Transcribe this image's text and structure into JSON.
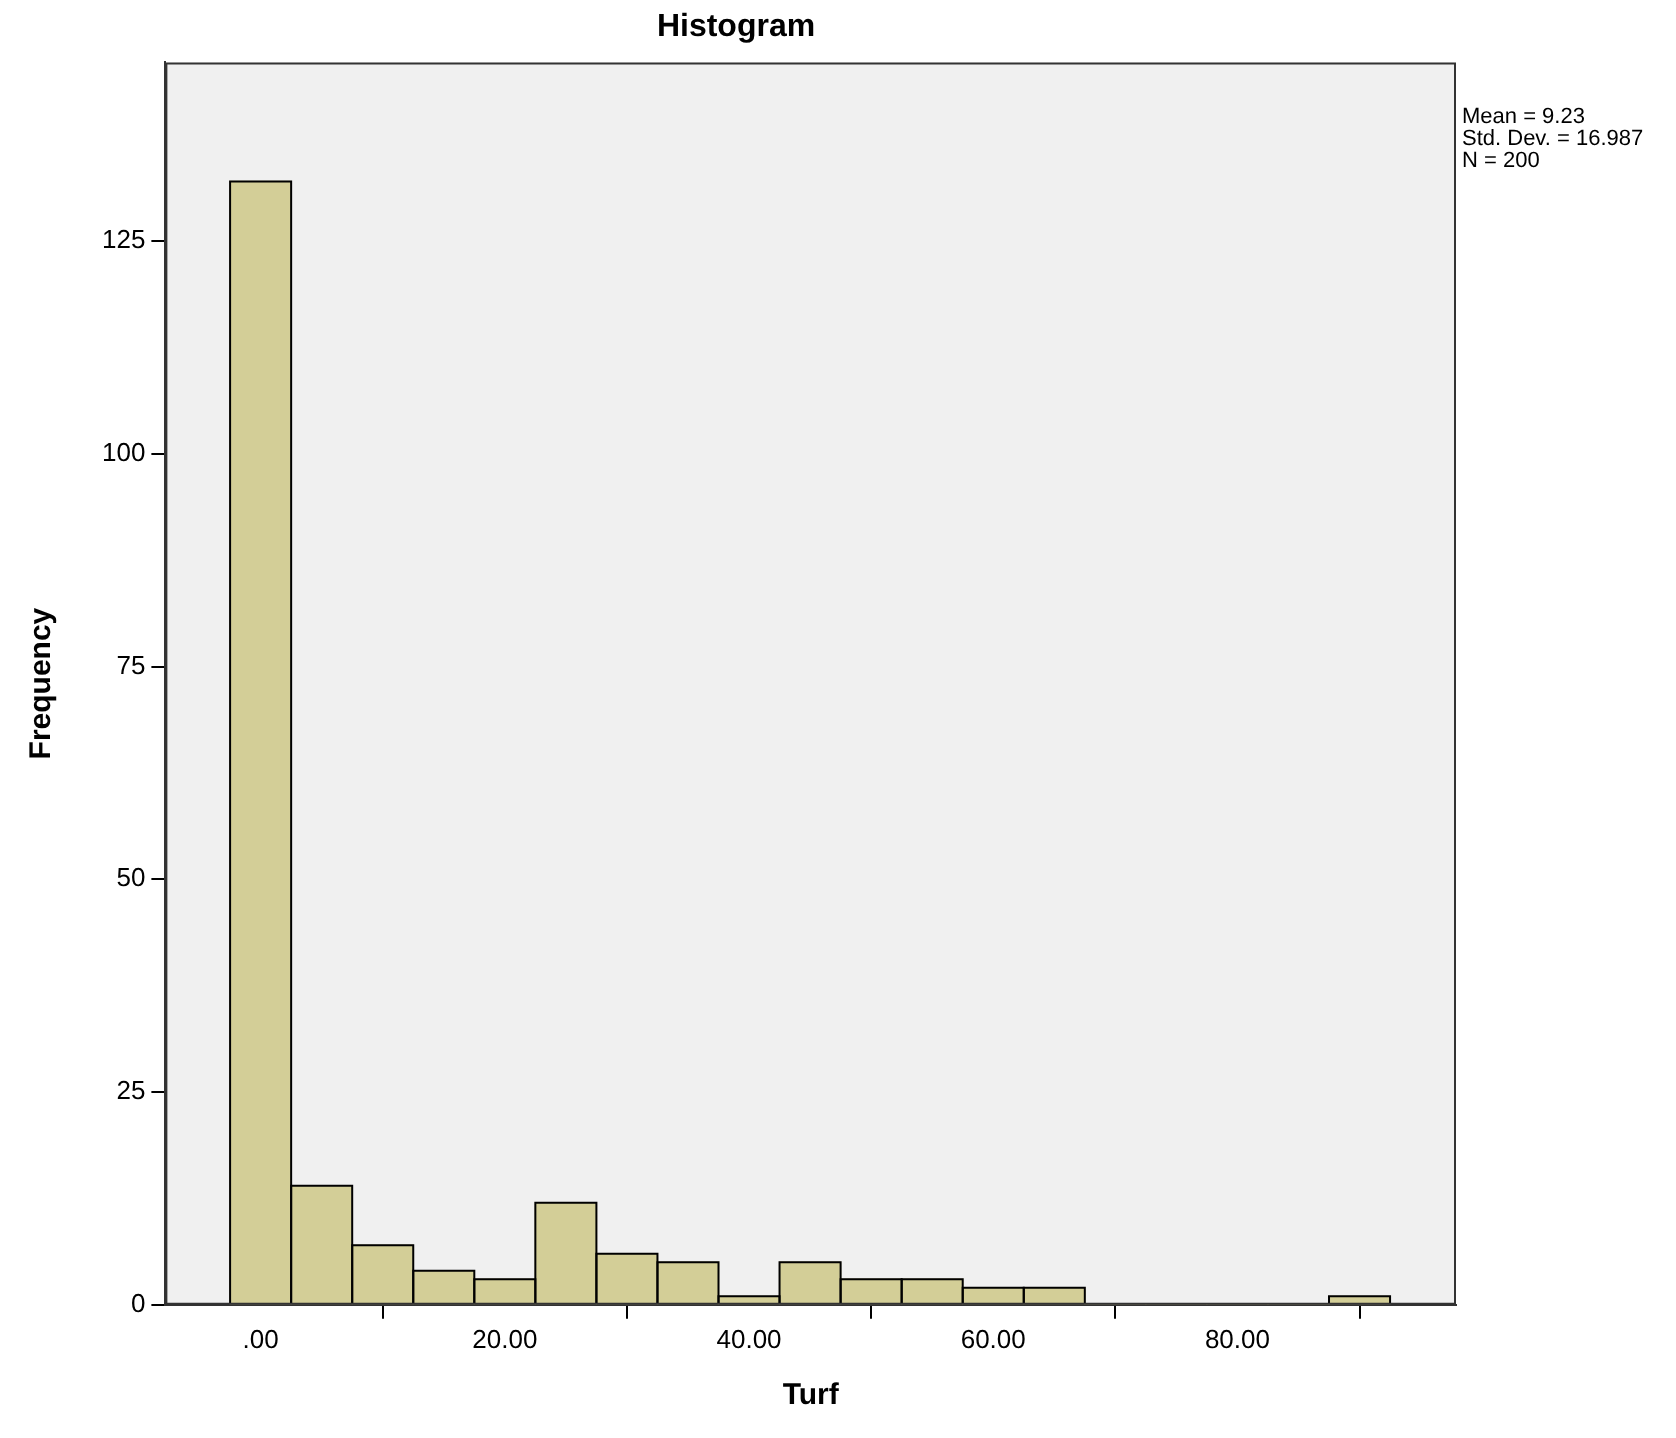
{
  "chart_data": {
    "type": "histogram",
    "title": "Histogram",
    "xlabel": "Turf",
    "ylabel": "Frequency",
    "bins": [
      -2.5,
      2.5,
      7.5,
      12.5,
      17.5,
      22.5,
      27.5,
      32.5,
      37.5,
      42.5,
      47.5,
      52.5,
      57.5,
      62.5,
      67.5,
      72.5,
      77.5,
      82.5,
      87.5,
      92.5
    ],
    "values": [
      132,
      14,
      7,
      4,
      3,
      12,
      6,
      5,
      1,
      5,
      3,
      3,
      2,
      2,
      0,
      0,
      0,
      0,
      1
    ],
    "color": "#d3ce97",
    "xlim": [
      -7.8,
      97.9
    ],
    "xticks": [
      {
        "value": 0,
        "label": ".00"
      },
      {
        "value": 20,
        "label": "20.00"
      },
      {
        "value": 40,
        "label": "40.00"
      },
      {
        "value": 60,
        "label": "60.00"
      },
      {
        "value": 80,
        "label": "80.00"
      }
    ],
    "ylim": [
      0,
      146
    ],
    "yticks": [
      0,
      25,
      50,
      75,
      100,
      125
    ],
    "grid": false,
    "legend": false,
    "annotations": [
      "Mean = 9.23",
      "Std. Dev. = 16.987",
      "N = 200"
    ]
  }
}
